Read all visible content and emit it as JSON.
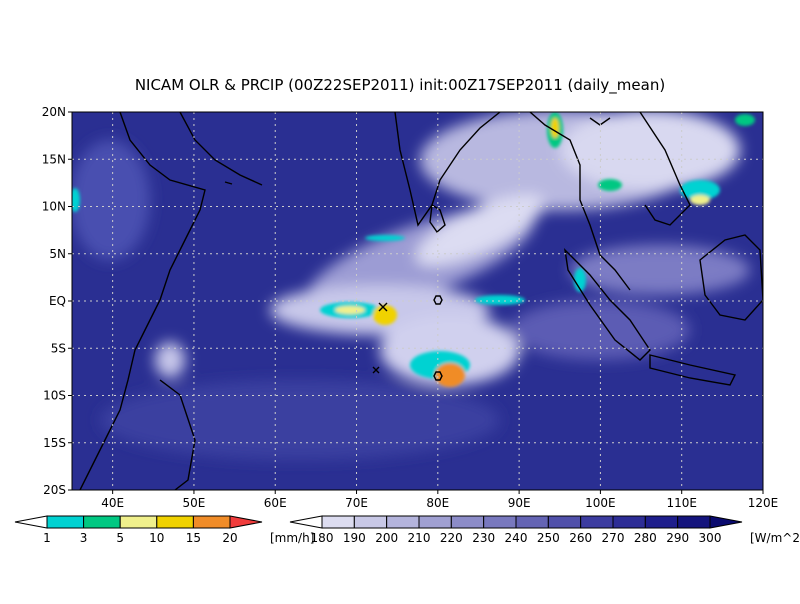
{
  "title": "NICAM OLR & PRCIP (00Z22SEP2011) init:00Z17SEP2011 (daily_mean)",
  "map": {
    "lonlim": [
      35,
      120
    ],
    "latlim": [
      -20,
      20
    ],
    "lonticks": [
      {
        "value": 40,
        "label": "40E"
      },
      {
        "value": 50,
        "label": "50E"
      },
      {
        "value": 60,
        "label": "60E"
      },
      {
        "value": 70,
        "label": "70E"
      },
      {
        "value": 80,
        "label": "80E"
      },
      {
        "value": 90,
        "label": "90E"
      },
      {
        "value": 100,
        "label": "100E"
      },
      {
        "value": 110,
        "label": "110E"
      },
      {
        "value": 120,
        "label": "120E"
      }
    ],
    "latticks": [
      {
        "value": 20,
        "label": "20N"
      },
      {
        "value": 15,
        "label": "15N"
      },
      {
        "value": 10,
        "label": "10N"
      },
      {
        "value": 5,
        "label": "5N"
      },
      {
        "value": 0,
        "label": "EQ"
      },
      {
        "value": -5,
        "label": "5S"
      },
      {
        "value": -10,
        "label": "10S"
      },
      {
        "value": -15,
        "label": "15S"
      },
      {
        "value": -20,
        "label": "20S"
      }
    ]
  },
  "precip_colorbar": {
    "ticks": [
      1,
      3,
      5,
      10,
      15,
      20
    ],
    "unit": "[mm/h]",
    "colors": [
      "#ffffff",
      "#00d2d2",
      "#00c882",
      "#f0f08c",
      "#f0d200",
      "#f08c28",
      "#f03c3c"
    ]
  },
  "olr_colorbar": {
    "ticks": [
      180,
      190,
      200,
      210,
      220,
      230,
      240,
      250,
      260,
      270,
      280,
      290,
      300
    ],
    "unit": "[W/m^2]",
    "colors": [
      "#ffffff",
      "#dcdcf0",
      "#c8c8e6",
      "#b4b4dc",
      "#a0a0d2",
      "#8c8cc8",
      "#7878be",
      "#6464b4",
      "#5050aa",
      "#3c3ca0",
      "#2d2d96",
      "#1e1e8c",
      "#14147d",
      "#0a0a6e"
    ]
  }
}
